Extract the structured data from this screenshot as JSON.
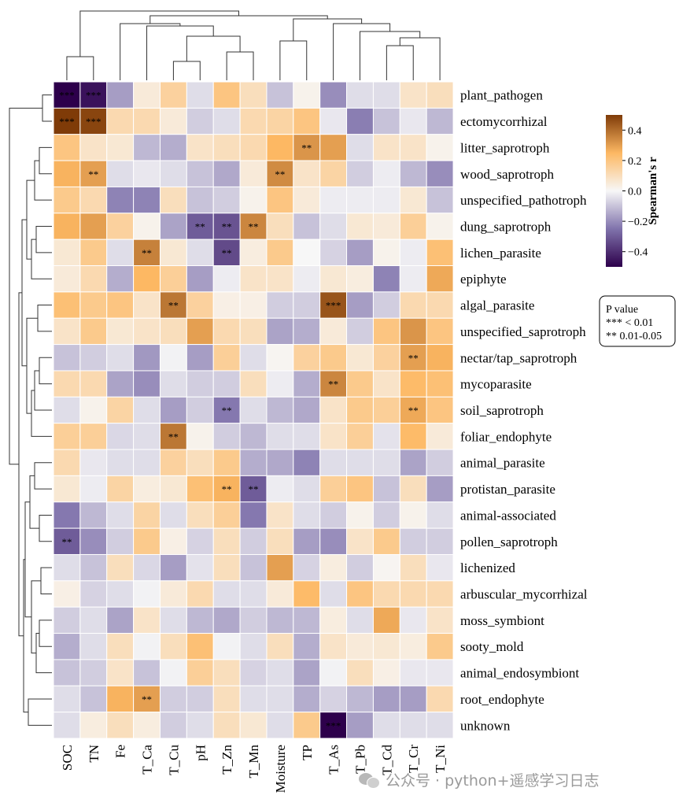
{
  "chart_data": {
    "type": "heatmap",
    "columns": [
      "SOC",
      "TN",
      "Fe",
      "T_Ca",
      "T_Cu",
      "pH",
      "T_Zn",
      "T_Mn",
      "Moisture",
      "TP",
      "T_As",
      "T_Pb",
      "T_Cd",
      "T_Cr",
      "T_Ni"
    ],
    "rows": [
      "plant_pathogen",
      "ectomycorrhizal",
      "litter_saprotroph",
      "wood_saprotroph",
      "unspecified_pathotroph",
      "dung_saprotroph",
      "lichen_parasite",
      "epiphyte",
      "algal_parasite",
      "unspecified_saprotroph",
      "nectar/tap_saprotroph",
      "mycoparasite",
      "soil_saprotroph",
      "foliar_endophyte",
      "animal_parasite",
      "protistan_parasite",
      "animal-associated",
      "pollen_saprotroph",
      "lichenized",
      "arbuscular_mycorrhizal",
      "moss_symbiont",
      "sooty_mold",
      "animal_endosymbiont",
      "root_endophyte",
      "unknown"
    ],
    "values": [
      [
        -0.52,
        -0.46,
        -0.17,
        0.05,
        0.15,
        -0.05,
        0.2,
        0.1,
        -0.1,
        0.02,
        -0.2,
        -0.05,
        -0.05,
        0.08,
        0.1
      ],
      [
        0.5,
        0.48,
        0.12,
        0.12,
        0.05,
        -0.08,
        -0.05,
        0.12,
        0.14,
        0.2,
        -0.03,
        -0.23,
        -0.1,
        -0.03,
        -0.12
      ],
      [
        0.2,
        0.08,
        0.06,
        -0.12,
        -0.14,
        0.08,
        0.1,
        0.12,
        0.25,
        0.32,
        0.3,
        -0.05,
        0.08,
        0.08,
        0.02
      ],
      [
        0.26,
        0.3,
        -0.05,
        -0.03,
        -0.05,
        -0.1,
        -0.15,
        0.05,
        0.34,
        0.08,
        0.14,
        -0.08,
        -0.02,
        -0.12,
        -0.2
      ],
      [
        0.18,
        0.12,
        -0.22,
        -0.22,
        0.1,
        -0.1,
        -0.08,
        0.02,
        0.2,
        0.05,
        -0.02,
        -0.02,
        -0.02,
        0.06,
        -0.1
      ],
      [
        0.26,
        0.3,
        0.15,
        0.02,
        -0.16,
        -0.3,
        -0.32,
        0.35,
        0.1,
        -0.1,
        -0.05,
        0.06,
        0.05,
        0.16,
        0.02
      ],
      [
        0.06,
        0.18,
        -0.05,
        0.36,
        0.06,
        -0.05,
        -0.34,
        0.04,
        0.18,
        0.0,
        -0.07,
        -0.17,
        0.02,
        -0.02,
        0.22
      ],
      [
        0.05,
        0.12,
        -0.14,
        0.25,
        0.16,
        -0.17,
        -0.02,
        0.08,
        0.08,
        -0.02,
        0.06,
        0.04,
        -0.22,
        -0.02,
        0.28
      ],
      [
        0.22,
        0.18,
        0.2,
        0.08,
        0.38,
        0.15,
        0.03,
        0.03,
        -0.08,
        -0.08,
        0.45,
        -0.17,
        -0.08,
        0.12,
        0.12
      ],
      [
        0.08,
        0.18,
        0.06,
        0.08,
        0.1,
        0.3,
        0.12,
        0.1,
        -0.16,
        -0.14,
        0.05,
        -0.08,
        0.2,
        0.32,
        0.2
      ],
      [
        -0.1,
        -0.08,
        -0.05,
        -0.18,
        -0.01,
        -0.17,
        0.16,
        -0.05,
        0.01,
        0.15,
        0.18,
        0.06,
        0.15,
        0.3,
        0.26
      ],
      [
        0.12,
        0.12,
        -0.16,
        -0.2,
        -0.05,
        -0.08,
        -0.08,
        0.1,
        -0.02,
        -0.14,
        0.35,
        0.18,
        0.08,
        0.24,
        0.22
      ],
      [
        -0.05,
        0.02,
        0.14,
        -0.05,
        -0.17,
        -0.08,
        -0.24,
        -0.05,
        -0.12,
        -0.15,
        0.08,
        0.18,
        0.16,
        0.28,
        0.2
      ],
      [
        0.16,
        0.16,
        -0.06,
        -0.05,
        0.38,
        0.02,
        -0.08,
        -0.12,
        -0.05,
        -0.05,
        0.08,
        0.16,
        -0.04,
        0.24,
        0.05
      ],
      [
        0.12,
        -0.03,
        -0.05,
        -0.05,
        0.15,
        0.1,
        0.18,
        -0.14,
        -0.15,
        -0.22,
        -0.05,
        -0.05,
        -0.05,
        -0.16,
        -0.08
      ],
      [
        0.06,
        -0.02,
        0.14,
        0.04,
        0.06,
        0.22,
        0.26,
        -0.3,
        -0.02,
        -0.05,
        0.16,
        0.2,
        -0.1,
        0.1,
        -0.17
      ],
      [
        -0.24,
        -0.12,
        -0.05,
        0.14,
        -0.05,
        0.1,
        0.16,
        -0.24,
        0.08,
        -0.05,
        -0.08,
        0.02,
        -0.08,
        0.02,
        -0.05
      ],
      [
        -0.3,
        -0.2,
        -0.08,
        0.18,
        0.03,
        -0.07,
        0.1,
        -0.08,
        0.1,
        -0.17,
        -0.2,
        0.08,
        0.18,
        -0.08,
        -0.08
      ],
      [
        -0.05,
        -0.1,
        0.1,
        -0.06,
        -0.17,
        -0.04,
        0.1,
        -0.1,
        0.3,
        -0.07,
        0.04,
        -0.08,
        0.01,
        0.1,
        -0.03
      ],
      [
        0.03,
        -0.07,
        -0.05,
        -0.01,
        0.05,
        0.12,
        -0.05,
        -0.05,
        0.05,
        0.24,
        -0.05,
        0.2,
        0.12,
        0.12,
        0.12
      ],
      [
        -0.08,
        -0.05,
        -0.16,
        0.08,
        -0.05,
        -0.12,
        -0.15,
        -0.08,
        -0.12,
        -0.12,
        0.04,
        -0.05,
        0.28,
        -0.03,
        0.08
      ],
      [
        -0.14,
        -0.05,
        0.1,
        -0.01,
        0.1,
        0.22,
        -0.01,
        -0.05,
        0.1,
        -0.14,
        0.08,
        0.05,
        0.06,
        0.04,
        0.18
      ],
      [
        -0.1,
        -0.08,
        0.08,
        -0.1,
        -0.01,
        0.16,
        0.1,
        -0.07,
        -0.05,
        -0.16,
        -0.01,
        0.1,
        0.03,
        -0.03,
        -0.03
      ],
      [
        -0.05,
        -0.1,
        0.26,
        0.3,
        -0.08,
        -0.08,
        0.1,
        -0.05,
        -0.05,
        -0.14,
        -0.07,
        -0.12,
        -0.17,
        -0.17,
        0.12
      ],
      [
        -0.05,
        0.04,
        0.1,
        0.04,
        -0.08,
        -0.05,
        0.1,
        0.06,
        -0.05,
        0.18,
        -0.52,
        -0.17,
        -0.05,
        -0.05,
        -0.05
      ]
    ],
    "significance": [
      [
        "***",
        "***",
        "",
        "",
        "",
        "",
        "",
        "",
        "",
        "",
        "",
        "",
        "",
        "",
        ""
      ],
      [
        "***",
        "***",
        "",
        "",
        "",
        "",
        "",
        "",
        "",
        "",
        "",
        "",
        "",
        "",
        ""
      ],
      [
        "",
        "",
        "",
        "",
        "",
        "",
        "",
        "",
        "",
        "**",
        "",
        "",
        "",
        "",
        ""
      ],
      [
        "",
        "**",
        "",
        "",
        "",
        "",
        "",
        "",
        "**",
        "",
        "",
        "",
        "",
        "",
        ""
      ],
      [
        "",
        "",
        "",
        "",
        "",
        "",
        "",
        "",
        "",
        "",
        "",
        "",
        "",
        "",
        ""
      ],
      [
        "",
        "",
        "",
        "",
        "",
        "**",
        "**",
        "**",
        "",
        "",
        "",
        "",
        "",
        "",
        ""
      ],
      [
        "",
        "",
        "",
        "**",
        "",
        "",
        "**",
        "",
        "",
        "",
        "",
        "",
        "",
        "",
        ""
      ],
      [
        "",
        "",
        "",
        "",
        "",
        "",
        "",
        "",
        "",
        "",
        "",
        "",
        "",
        "",
        ""
      ],
      [
        "",
        "",
        "",
        "",
        "**",
        "",
        "",
        "",
        "",
        "",
        "***",
        "",
        "",
        "",
        ""
      ],
      [
        "",
        "",
        "",
        "",
        "",
        "",
        "",
        "",
        "",
        "",
        "",
        "",
        "",
        "",
        ""
      ],
      [
        "",
        "",
        "",
        "",
        "",
        "",
        "",
        "",
        "",
        "",
        "",
        "",
        "",
        "**",
        ""
      ],
      [
        "",
        "",
        "",
        "",
        "",
        "",
        "",
        "",
        "",
        "",
        "**",
        "",
        "",
        "",
        ""
      ],
      [
        "",
        "",
        "",
        "",
        "",
        "",
        "**",
        "",
        "",
        "",
        "",
        "",
        "",
        "**",
        ""
      ],
      [
        "",
        "",
        "",
        "",
        "**",
        "",
        "",
        "",
        "",
        "",
        "",
        "",
        "",
        "",
        ""
      ],
      [
        "",
        "",
        "",
        "",
        "",
        "",
        "",
        "",
        "",
        "",
        "",
        "",
        "",
        "",
        ""
      ],
      [
        "",
        "",
        "",
        "",
        "",
        "",
        "**",
        "**",
        "",
        "",
        "",
        "",
        "",
        "",
        ""
      ],
      [
        "",
        "",
        "",
        "",
        "",
        "",
        "",
        "",
        "",
        "",
        "",
        "",
        "",
        "",
        ""
      ],
      [
        "**",
        "",
        "",
        "",
        "",
        "",
        "",
        "",
        "",
        "",
        "",
        "",
        "",
        "",
        ""
      ],
      [
        "",
        "",
        "",
        "",
        "",
        "",
        "",
        "",
        "",
        "",
        "",
        "",
        "",
        "",
        ""
      ],
      [
        "",
        "",
        "",
        "",
        "",
        "",
        "",
        "",
        "",
        "",
        "",
        "",
        "",
        "",
        ""
      ],
      [
        "",
        "",
        "",
        "",
        "",
        "",
        "",
        "",
        "",
        "",
        "",
        "",
        "",
        "",
        ""
      ],
      [
        "",
        "",
        "",
        "",
        "",
        "",
        "",
        "",
        "",
        "",
        "",
        "",
        "",
        "",
        ""
      ],
      [
        "",
        "",
        "",
        "",
        "",
        "",
        "",
        "",
        "",
        "",
        "",
        "",
        "",
        "",
        ""
      ],
      [
        "",
        "",
        "",
        "**",
        "",
        "",
        "",
        "",
        "",
        "",
        "",
        "",
        "",
        "",
        ""
      ],
      [
        "",
        "",
        "",
        "",
        "",
        "",
        "",
        "",
        "",
        "",
        "***",
        "",
        "",
        "",
        ""
      ]
    ],
    "colorbar": {
      "label": "Spearman's r",
      "vmin": -0.5,
      "vmax": 0.5,
      "ticks": [
        0.4,
        0.2,
        0.0,
        -0.2,
        -0.4
      ],
      "tick_labels": [
        "0.4",
        "0.2",
        "0.0",
        "−0.2",
        "−0.4"
      ],
      "colormap": [
        "#2d004b",
        "#8073ac",
        "#f7f7f7",
        "#fdb863",
        "#7f3b08"
      ]
    },
    "legend": {
      "title": "P value",
      "items": [
        "*** < 0.01",
        "** 0.01-0.05"
      ],
      "placement": "right"
    },
    "dendrogram_rows": "left",
    "dendrogram_columns": "top"
  },
  "watermark": {
    "text": "公众号 · python+遥感学习日志",
    "icon": "wechat-icon"
  }
}
